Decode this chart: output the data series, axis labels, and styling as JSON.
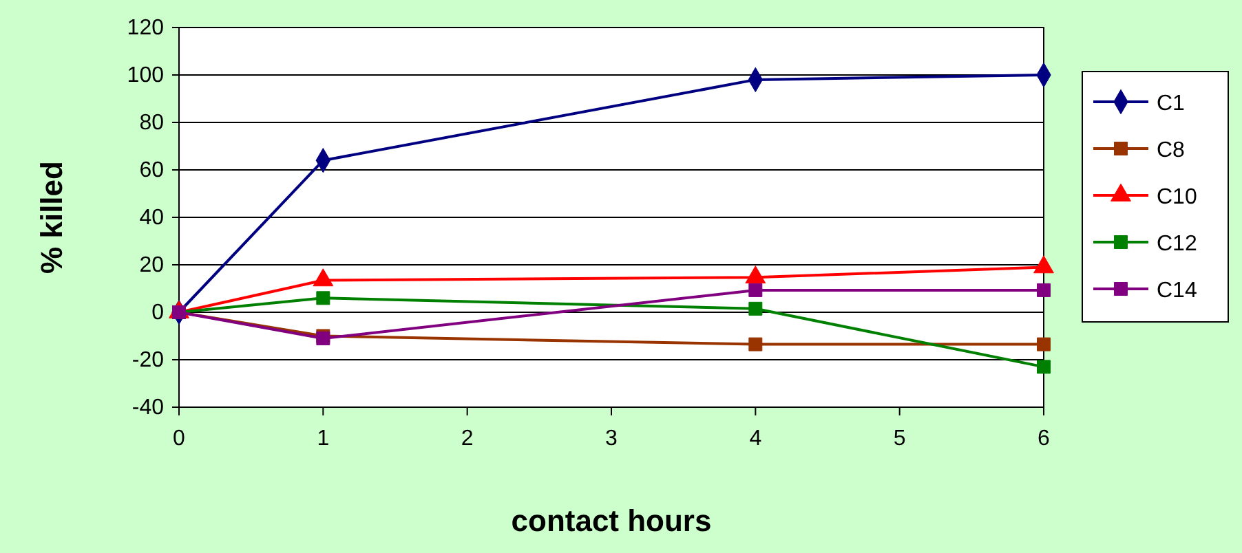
{
  "chart_data": {
    "type": "line",
    "xlabel": "contact hours",
    "ylabel": "% killed",
    "x": [
      0,
      1,
      4,
      6
    ],
    "xlim": [
      0,
      6
    ],
    "xticks": [
      0,
      1,
      2,
      3,
      4,
      5,
      6
    ],
    "ylim": [
      -40,
      120
    ],
    "yticks": [
      -40,
      -20,
      0,
      20,
      40,
      60,
      80,
      100,
      120
    ],
    "grid": "y",
    "legend": "right",
    "line_style": "solid",
    "series": [
      {
        "name": "C1",
        "color": "#000080",
        "marker": "diamond",
        "values": [
          0,
          64,
          98,
          100
        ]
      },
      {
        "name": "C8",
        "color": "#993300",
        "marker": "square",
        "values": [
          0,
          -10,
          -13.5,
          -13.5
        ]
      },
      {
        "name": "C10",
        "color": "#ff0000",
        "marker": "triangle",
        "values": [
          0,
          13.5,
          14.7,
          19
        ]
      },
      {
        "name": "C12",
        "color": "#008000",
        "marker": "square",
        "values": [
          0,
          6,
          1.5,
          -23
        ]
      },
      {
        "name": "C14",
        "color": "#800080",
        "marker": "square",
        "values": [
          0,
          -11,
          9.3,
          9.3
        ]
      }
    ]
  }
}
